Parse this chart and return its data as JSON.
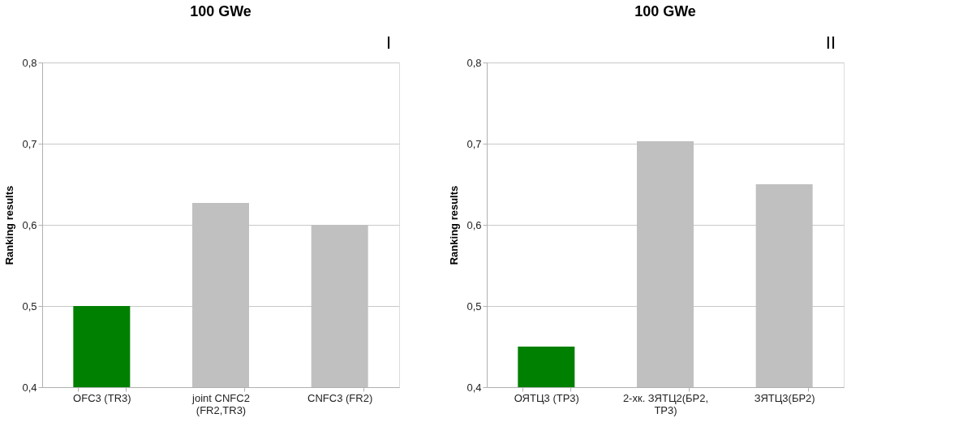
{
  "chart_data": [
    {
      "type": "bar",
      "title": "100 GWe",
      "ylabel": "Ranking results",
      "annotations": [
        "I"
      ],
      "categories": [
        "OFC3 (TR3)",
        "joint CNFC2 (FR2,TR3)",
        "CNFC3 (FR2)"
      ],
      "values": [
        0.5,
        0.627,
        0.6
      ],
      "colors": [
        "#008000",
        "#c0c0c0",
        "#c0c0c0"
      ],
      "ylim": [
        0.4,
        0.8
      ],
      "yticks": [
        {
          "value": 0.4,
          "label": "0,4"
        },
        {
          "value": 0.5,
          "label": "0,5"
        },
        {
          "value": 0.6,
          "label": "0,6"
        },
        {
          "value": 0.7,
          "label": "0,7"
        },
        {
          "value": 0.8,
          "label": "0,8"
        }
      ],
      "grid": "y",
      "legend": false
    },
    {
      "type": "bar",
      "title": "100 GWe",
      "ylabel": "Ranking results",
      "annotations": [
        "II"
      ],
      "categories": [
        "ОЯТЦ3 (ТР3)",
        "2-хк. ЗЯТЦ2(БР2, ТР3)",
        "ЗЯТЦ3(БР2)"
      ],
      "values": [
        0.45,
        0.703,
        0.65
      ],
      "colors": [
        "#008000",
        "#c0c0c0",
        "#c0c0c0"
      ],
      "ylim": [
        0.4,
        0.8
      ],
      "yticks": [
        {
          "value": 0.4,
          "label": "0,4"
        },
        {
          "value": 0.5,
          "label": "0,5"
        },
        {
          "value": 0.6,
          "label": "0,6"
        },
        {
          "value": 0.7,
          "label": "0,7"
        },
        {
          "value": 0.8,
          "label": "0,8"
        }
      ],
      "grid": "y",
      "legend": false
    }
  ]
}
